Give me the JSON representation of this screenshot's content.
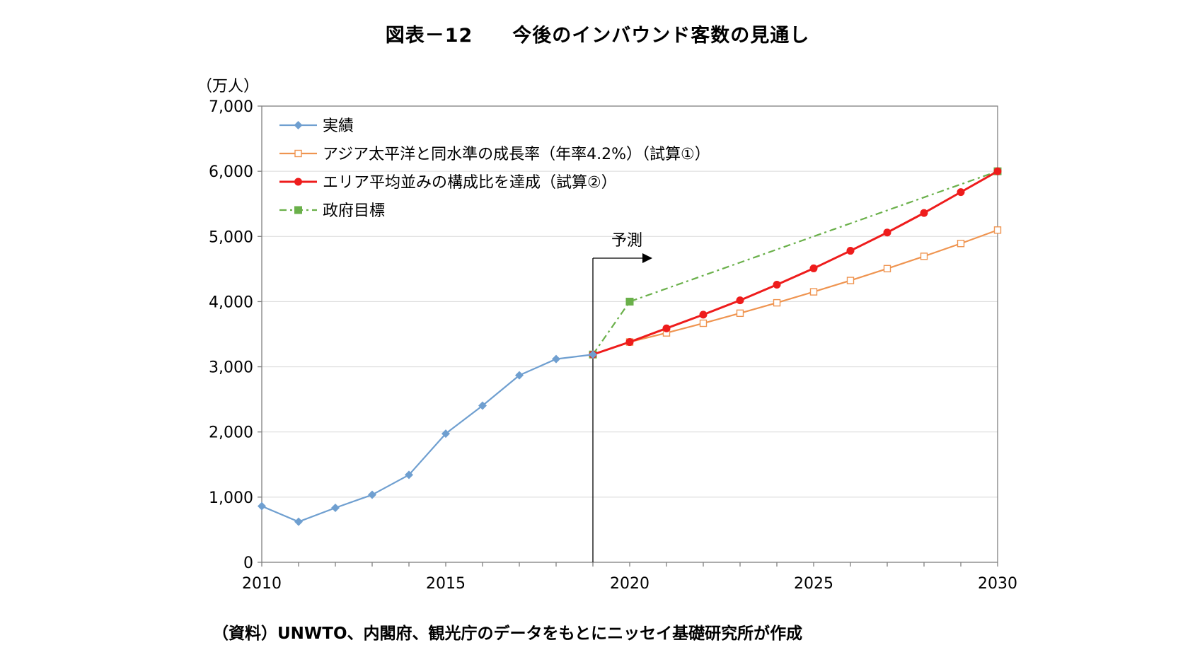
{
  "title": "図表－12　　今後のインバウンド客数の見通し",
  "source": "（資料）UNWTO、内閣府、観光庁のデータをもとにニッセイ基礎研究所が作成",
  "chart_data": {
    "type": "line",
    "title": "図表－12　　今後のインバウンド客数の見通し",
    "ylabel": "（万人）",
    "xlabel": "",
    "xlim": [
      2010,
      2030
    ],
    "ylim": [
      0,
      7000
    ],
    "x_ticks": [
      "2010",
      "2015",
      "2020",
      "2025",
      "2030"
    ],
    "y_ticks": [
      "0",
      "1,000",
      "2,000",
      "3,000",
      "4,000",
      "5,000",
      "6,000",
      "7,000"
    ],
    "grid": true,
    "legend_position": "top-left",
    "annotation": {
      "text": "予測",
      "x": 2019
    },
    "series": [
      {
        "name": "実績",
        "color": "#6f9fd0",
        "marker": "diamond",
        "x": [
          2010,
          2011,
          2012,
          2013,
          2014,
          2015,
          2016,
          2017,
          2018,
          2019
        ],
        "values": [
          861,
          622,
          836,
          1036,
          1341,
          1974,
          2404,
          2869,
          3119,
          3188
        ]
      },
      {
        "name": "アジア太平洋と同水準の成長率（年率4.2%）（試算①）",
        "color": "#ef9450",
        "marker": "open-square",
        "x": [
          2019,
          2020,
          2021,
          2022,
          2023,
          2024,
          2025,
          2026,
          2027,
          2028,
          2029,
          2030
        ],
        "values": [
          3188,
          3380,
          3520,
          3668,
          3822,
          3982,
          4150,
          4324,
          4506,
          4695,
          4892,
          5098
        ]
      },
      {
        "name": "エリア平均並みの構成比を達成（試算②）",
        "color": "#ee1c1c",
        "marker": "circle",
        "x": [
          2019,
          2020,
          2021,
          2022,
          2023,
          2024,
          2025,
          2026,
          2027,
          2028,
          2029,
          2030
        ],
        "values": [
          3188,
          3380,
          3590,
          3800,
          4020,
          4260,
          4510,
          4780,
          5060,
          5360,
          5680,
          6000
        ]
      },
      {
        "name": "政府目標",
        "color": "#6ab04a",
        "marker": "square",
        "dash": "dashdot",
        "x": [
          2019,
          2020,
          2030
        ],
        "values": [
          3188,
          4000,
          6000
        ]
      }
    ]
  }
}
